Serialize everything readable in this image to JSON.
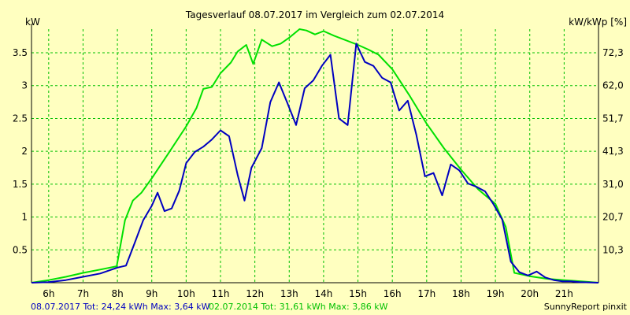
{
  "chart_data": {
    "type": "line",
    "title": "Tagesverlauf 08.07.2017 im Vergleich zum 02.07.2014",
    "ylabel_left": "kW",
    "ylabel_right": "kW/kWp [%]",
    "xlim": [
      5.5,
      22.0
    ],
    "ylim": [
      0,
      3.86
    ],
    "x_ticks": [
      {
        "x": 6,
        "label": "6h"
      },
      {
        "x": 7,
        "label": "7h"
      },
      {
        "x": 8,
        "label": "8h"
      },
      {
        "x": 9,
        "label": "9h"
      },
      {
        "x": 10,
        "label": "10h"
      },
      {
        "x": 11,
        "label": "11h"
      },
      {
        "x": 12,
        "label": "12h"
      },
      {
        "x": 13,
        "label": "13h"
      },
      {
        "x": 14,
        "label": "14h"
      },
      {
        "x": 15,
        "label": "15h"
      },
      {
        "x": 16,
        "label": "16h"
      },
      {
        "x": 17,
        "label": "17h"
      },
      {
        "x": 18,
        "label": "18h"
      },
      {
        "x": 19,
        "label": "19h"
      },
      {
        "x": 20,
        "label": "20h"
      },
      {
        "x": 21,
        "label": "21h"
      }
    ],
    "y_ticks_left": [
      {
        "y": 0.5,
        "label": "0.5"
      },
      {
        "y": 1.0,
        "label": "1"
      },
      {
        "y": 1.5,
        "label": "1.5"
      },
      {
        "y": 2.0,
        "label": "2"
      },
      {
        "y": 2.5,
        "label": "2.5"
      },
      {
        "y": 3.0,
        "label": "3"
      },
      {
        "y": 3.5,
        "label": "3.5"
      }
    ],
    "y_ticks_right": [
      {
        "y": 0.5,
        "label": "10,3"
      },
      {
        "y": 1.0,
        "label": "20,7"
      },
      {
        "y": 1.5,
        "label": "31,0"
      },
      {
        "y": 2.0,
        "label": "41,3"
      },
      {
        "y": 2.5,
        "label": "51,7"
      },
      {
        "y": 3.0,
        "label": "62,0"
      },
      {
        "y": 3.5,
        "label": "72,3"
      }
    ],
    "grid": true,
    "series": [
      {
        "label": "08.07.2017 Tot: 24,24 kWh Max: 3,64 kW",
        "color": "#0000c0",
        "points": [
          [
            5.5,
            0
          ],
          [
            6.0,
            0.01
          ],
          [
            6.5,
            0.04
          ],
          [
            7.0,
            0.09
          ],
          [
            7.5,
            0.14
          ],
          [
            8.0,
            0.23
          ],
          [
            8.25,
            0.26
          ],
          [
            8.5,
            0.6
          ],
          [
            8.75,
            0.95
          ],
          [
            9.0,
            1.17
          ],
          [
            9.17,
            1.37
          ],
          [
            9.37,
            1.09
          ],
          [
            9.58,
            1.13
          ],
          [
            9.8,
            1.4
          ],
          [
            10.0,
            1.82
          ],
          [
            10.25,
            1.99
          ],
          [
            10.5,
            2.07
          ],
          [
            10.75,
            2.18
          ],
          [
            11.0,
            2.32
          ],
          [
            11.25,
            2.23
          ],
          [
            11.5,
            1.64
          ],
          [
            11.7,
            1.25
          ],
          [
            11.9,
            1.75
          ],
          [
            12.2,
            2.05
          ],
          [
            12.45,
            2.75
          ],
          [
            12.7,
            3.05
          ],
          [
            12.95,
            2.73
          ],
          [
            13.2,
            2.4
          ],
          [
            13.45,
            2.96
          ],
          [
            13.7,
            3.08
          ],
          [
            13.95,
            3.3
          ],
          [
            14.2,
            3.47
          ],
          [
            14.45,
            2.5
          ],
          [
            14.7,
            2.4
          ],
          [
            14.95,
            3.64
          ],
          [
            15.2,
            3.36
          ],
          [
            15.45,
            3.3
          ],
          [
            15.7,
            3.12
          ],
          [
            15.95,
            3.05
          ],
          [
            16.2,
            2.62
          ],
          [
            16.45,
            2.77
          ],
          [
            16.7,
            2.25
          ],
          [
            16.95,
            1.62
          ],
          [
            17.2,
            1.67
          ],
          [
            17.45,
            1.33
          ],
          [
            17.7,
            1.8
          ],
          [
            17.95,
            1.71
          ],
          [
            18.2,
            1.51
          ],
          [
            18.45,
            1.46
          ],
          [
            18.7,
            1.39
          ],
          [
            18.95,
            1.19
          ],
          [
            19.2,
            0.96
          ],
          [
            19.45,
            0.32
          ],
          [
            19.7,
            0.16
          ],
          [
            19.95,
            0.11
          ],
          [
            20.2,
            0.17
          ],
          [
            20.45,
            0.08
          ],
          [
            20.7,
            0.04
          ],
          [
            20.95,
            0.02
          ],
          [
            21.2,
            0.02
          ],
          [
            21.45,
            0.01
          ],
          [
            22.0,
            0
          ]
        ]
      },
      {
        "label": "02.07.2014 Tot: 31,61 kWh Max: 3,86 kW",
        "color": "#00e000",
        "points": [
          [
            5.5,
            0
          ],
          [
            6.0,
            0.04
          ],
          [
            6.5,
            0.09
          ],
          [
            7.0,
            0.15
          ],
          [
            7.5,
            0.2
          ],
          [
            7.98,
            0.25
          ],
          [
            8.22,
            0.95
          ],
          [
            8.45,
            1.25
          ],
          [
            8.7,
            1.37
          ],
          [
            9.0,
            1.59
          ],
          [
            9.5,
            1.98
          ],
          [
            10.0,
            2.38
          ],
          [
            10.3,
            2.66
          ],
          [
            10.5,
            2.95
          ],
          [
            10.75,
            2.98
          ],
          [
            11.0,
            3.19
          ],
          [
            11.3,
            3.35
          ],
          [
            11.5,
            3.52
          ],
          [
            11.75,
            3.62
          ],
          [
            11.95,
            3.33
          ],
          [
            12.2,
            3.7
          ],
          [
            12.5,
            3.6
          ],
          [
            12.75,
            3.64
          ],
          [
            13.0,
            3.73
          ],
          [
            13.3,
            3.86
          ],
          [
            13.5,
            3.84
          ],
          [
            13.75,
            3.78
          ],
          [
            14.0,
            3.83
          ],
          [
            14.3,
            3.76
          ],
          [
            14.6,
            3.7
          ],
          [
            15.0,
            3.62
          ],
          [
            15.3,
            3.55
          ],
          [
            15.6,
            3.47
          ],
          [
            16.0,
            3.25
          ],
          [
            16.5,
            2.85
          ],
          [
            17.0,
            2.42
          ],
          [
            17.5,
            2.05
          ],
          [
            18.0,
            1.72
          ],
          [
            18.5,
            1.42
          ],
          [
            19.0,
            1.2
          ],
          [
            19.3,
            0.85
          ],
          [
            19.55,
            0.15
          ],
          [
            20.0,
            0.1
          ],
          [
            20.5,
            0.06
          ],
          [
            21.0,
            0.04
          ],
          [
            21.5,
            0.02
          ],
          [
            22.0,
            0
          ]
        ]
      }
    ],
    "footer_right": "SunnyReport pinxit"
  }
}
